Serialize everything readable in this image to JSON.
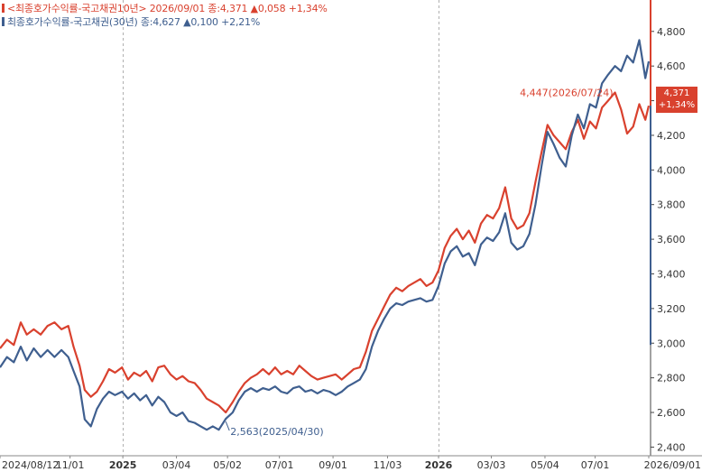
{
  "legend": {
    "series1": "<최종호가수익률-국고채권10년> 2026/09/01 종:4,371  ▲0,058  +1,34%",
    "series2": "최종호가수익률-국고채권(30년) 종:4,627  ▲0,100  +2,21%"
  },
  "badge": {
    "value": "4,371",
    "change": "+1,34%"
  },
  "colors": {
    "series1": "#d9412e",
    "series2": "#3f5f8f",
    "grid": "#b0b0b0"
  },
  "chart_data": {
    "type": "line",
    "ylim": [
      2.35,
      4.95
    ],
    "grid": "dashed vertical lines at year boundaries",
    "y_ticks": [
      {
        "value": 2.4,
        "label": "2,400"
      },
      {
        "value": 2.6,
        "label": "2,600"
      },
      {
        "value": 2.8,
        "label": "2,800"
      },
      {
        "value": 3.0,
        "label": "3,000"
      },
      {
        "value": 3.2,
        "label": "3,200"
      },
      {
        "value": 3.4,
        "label": "3,400"
      },
      {
        "value": 3.6,
        "label": "3,600"
      },
      {
        "value": 3.8,
        "label": "3,800"
      },
      {
        "value": 4.0,
        "label": "4,000"
      },
      {
        "value": 4.2,
        "label": "4,200"
      },
      {
        "value": 4.4,
        "label": "4,400"
      },
      {
        "value": 4.6,
        "label": "4,600"
      },
      {
        "value": 4.8,
        "label": "4,800"
      }
    ],
    "x_ticks": [
      {
        "date": "2024-08-12",
        "label": "2024/08/12",
        "bold": false
      },
      {
        "date": "2024-11-01",
        "label": "11/01",
        "bold": false
      },
      {
        "date": "2025-01-01",
        "label": "2025",
        "bold": true
      },
      {
        "date": "2025-03-04",
        "label": "03/04",
        "bold": false
      },
      {
        "date": "2025-05-02",
        "label": "05/02",
        "bold": false
      },
      {
        "date": "2025-07-01",
        "label": "07/01",
        "bold": false
      },
      {
        "date": "2025-09-01",
        "label": "09/01",
        "bold": false
      },
      {
        "date": "2025-11-03",
        "label": "11/03",
        "bold": false
      },
      {
        "date": "2026-01-01",
        "label": "2026",
        "bold": true
      },
      {
        "date": "2026-03-03",
        "label": "03/03",
        "bold": false
      },
      {
        "date": "2026-05-04",
        "label": "05/04",
        "bold": false
      },
      {
        "date": "2026-07-01",
        "label": "07/01",
        "bold": false
      },
      {
        "date": "2026-09-01",
        "label": "2026/09/01",
        "bold": false
      }
    ],
    "year_lines": [
      "2025-01-01",
      "2026-01-01"
    ],
    "series": [
      {
        "name": "최종호가수익률-국고채권10년",
        "color": "#d9412e",
        "points": [
          [
            "2024-08-12",
            2.97
          ],
          [
            "2024-08-20",
            3.02
          ],
          [
            "2024-08-28",
            2.99
          ],
          [
            "2024-09-05",
            3.12
          ],
          [
            "2024-09-12",
            3.05
          ],
          [
            "2024-09-20",
            3.08
          ],
          [
            "2024-09-28",
            3.05
          ],
          [
            "2024-10-06",
            3.1
          ],
          [
            "2024-10-14",
            3.12
          ],
          [
            "2024-10-22",
            3.08
          ],
          [
            "2024-10-30",
            3.1
          ],
          [
            "2024-11-05",
            2.98
          ],
          [
            "2024-11-12",
            2.87
          ],
          [
            "2024-11-18",
            2.73
          ],
          [
            "2024-11-25",
            2.69
          ],
          [
            "2024-12-02",
            2.72
          ],
          [
            "2024-12-09",
            2.78
          ],
          [
            "2024-12-16",
            2.85
          ],
          [
            "2024-12-23",
            2.83
          ],
          [
            "2024-12-31",
            2.86
          ],
          [
            "2025-01-07",
            2.79
          ],
          [
            "2025-01-14",
            2.83
          ],
          [
            "2025-01-21",
            2.81
          ],
          [
            "2025-01-28",
            2.84
          ],
          [
            "2025-02-04",
            2.78
          ],
          [
            "2025-02-11",
            2.86
          ],
          [
            "2025-02-18",
            2.87
          ],
          [
            "2025-02-25",
            2.82
          ],
          [
            "2025-03-04",
            2.79
          ],
          [
            "2025-03-11",
            2.81
          ],
          [
            "2025-03-18",
            2.78
          ],
          [
            "2025-03-25",
            2.77
          ],
          [
            "2025-04-01",
            2.73
          ],
          [
            "2025-04-08",
            2.68
          ],
          [
            "2025-04-15",
            2.66
          ],
          [
            "2025-04-22",
            2.64
          ],
          [
            "2025-04-30",
            2.6
          ],
          [
            "2025-05-08",
            2.66
          ],
          [
            "2025-05-15",
            2.72
          ],
          [
            "2025-05-22",
            2.77
          ],
          [
            "2025-05-29",
            2.8
          ],
          [
            "2025-06-05",
            2.82
          ],
          [
            "2025-06-12",
            2.85
          ],
          [
            "2025-06-19",
            2.82
          ],
          [
            "2025-06-26",
            2.86
          ],
          [
            "2025-07-03",
            2.82
          ],
          [
            "2025-07-10",
            2.84
          ],
          [
            "2025-07-17",
            2.82
          ],
          [
            "2025-07-24",
            2.87
          ],
          [
            "2025-07-31",
            2.84
          ],
          [
            "2025-08-07",
            2.81
          ],
          [
            "2025-08-14",
            2.79
          ],
          [
            "2025-08-21",
            2.8
          ],
          [
            "2025-08-28",
            2.81
          ],
          [
            "2025-09-04",
            2.82
          ],
          [
            "2025-09-11",
            2.79
          ],
          [
            "2025-09-18",
            2.82
          ],
          [
            "2025-09-25",
            2.85
          ],
          [
            "2025-10-02",
            2.86
          ],
          [
            "2025-10-09",
            2.95
          ],
          [
            "2025-10-16",
            3.07
          ],
          [
            "2025-10-23",
            3.14
          ],
          [
            "2025-10-30",
            3.21
          ],
          [
            "2025-11-06",
            3.28
          ],
          [
            "2025-11-13",
            3.32
          ],
          [
            "2025-11-20",
            3.3
          ],
          [
            "2025-11-27",
            3.33
          ],
          [
            "2025-12-04",
            3.35
          ],
          [
            "2025-12-11",
            3.37
          ],
          [
            "2025-12-18",
            3.33
          ],
          [
            "2025-12-25",
            3.35
          ],
          [
            "2026-01-01",
            3.42
          ],
          [
            "2026-01-08",
            3.55
          ],
          [
            "2026-01-15",
            3.62
          ],
          [
            "2026-01-22",
            3.66
          ],
          [
            "2026-01-29",
            3.6
          ],
          [
            "2026-02-05",
            3.65
          ],
          [
            "2026-02-12",
            3.58
          ],
          [
            "2026-02-19",
            3.69
          ],
          [
            "2026-02-26",
            3.74
          ],
          [
            "2026-03-05",
            3.72
          ],
          [
            "2026-03-12",
            3.78
          ],
          [
            "2026-03-19",
            3.9
          ],
          [
            "2026-03-26",
            3.72
          ],
          [
            "2026-04-02",
            3.66
          ],
          [
            "2026-04-09",
            3.68
          ],
          [
            "2026-04-16",
            3.75
          ],
          [
            "2026-04-23",
            3.93
          ],
          [
            "2026-04-30",
            4.1
          ],
          [
            "2026-05-07",
            4.26
          ],
          [
            "2026-05-14",
            4.2
          ],
          [
            "2026-05-21",
            4.16
          ],
          [
            "2026-05-28",
            4.12
          ],
          [
            "2026-06-04",
            4.22
          ],
          [
            "2026-06-11",
            4.29
          ],
          [
            "2026-06-18",
            4.18
          ],
          [
            "2026-06-25",
            4.28
          ],
          [
            "2026-07-02",
            4.24
          ],
          [
            "2026-07-09",
            4.36
          ],
          [
            "2026-07-16",
            4.4
          ],
          [
            "2026-07-24",
            4.447
          ],
          [
            "2026-07-31",
            4.35
          ],
          [
            "2026-08-07",
            4.21
          ],
          [
            "2026-08-14",
            4.25
          ],
          [
            "2026-08-21",
            4.38
          ],
          [
            "2026-08-28",
            4.29
          ],
          [
            "2026-09-01",
            4.371
          ]
        ]
      },
      {
        "name": "최종호가수익률-국고채권(30년)",
        "color": "#3f5f8f",
        "points": [
          [
            "2024-08-12",
            2.86
          ],
          [
            "2024-08-20",
            2.92
          ],
          [
            "2024-08-28",
            2.89
          ],
          [
            "2024-09-05",
            2.98
          ],
          [
            "2024-09-12",
            2.9
          ],
          [
            "2024-09-20",
            2.97
          ],
          [
            "2024-09-28",
            2.92
          ],
          [
            "2024-10-06",
            2.96
          ],
          [
            "2024-10-14",
            2.92
          ],
          [
            "2024-10-22",
            2.96
          ],
          [
            "2024-10-30",
            2.92
          ],
          [
            "2024-11-05",
            2.84
          ],
          [
            "2024-11-12",
            2.75
          ],
          [
            "2024-11-18",
            2.56
          ],
          [
            "2024-11-25",
            2.52
          ],
          [
            "2024-12-02",
            2.62
          ],
          [
            "2024-12-09",
            2.68
          ],
          [
            "2024-12-16",
            2.72
          ],
          [
            "2024-12-23",
            2.7
          ],
          [
            "2024-12-31",
            2.72
          ],
          [
            "2025-01-07",
            2.68
          ],
          [
            "2025-01-14",
            2.71
          ],
          [
            "2025-01-21",
            2.67
          ],
          [
            "2025-01-28",
            2.7
          ],
          [
            "2025-02-04",
            2.64
          ],
          [
            "2025-02-11",
            2.69
          ],
          [
            "2025-02-18",
            2.66
          ],
          [
            "2025-02-25",
            2.6
          ],
          [
            "2025-03-04",
            2.58
          ],
          [
            "2025-03-11",
            2.6
          ],
          [
            "2025-03-18",
            2.55
          ],
          [
            "2025-03-25",
            2.54
          ],
          [
            "2025-04-01",
            2.52
          ],
          [
            "2025-04-08",
            2.5
          ],
          [
            "2025-04-15",
            2.52
          ],
          [
            "2025-04-22",
            2.5
          ],
          [
            "2025-04-30",
            2.563
          ],
          [
            "2025-05-08",
            2.6
          ],
          [
            "2025-05-15",
            2.67
          ],
          [
            "2025-05-22",
            2.72
          ],
          [
            "2025-05-29",
            2.74
          ],
          [
            "2025-06-05",
            2.72
          ],
          [
            "2025-06-12",
            2.74
          ],
          [
            "2025-06-19",
            2.73
          ],
          [
            "2025-06-26",
            2.75
          ],
          [
            "2025-07-03",
            2.72
          ],
          [
            "2025-07-10",
            2.71
          ],
          [
            "2025-07-17",
            2.74
          ],
          [
            "2025-07-24",
            2.75
          ],
          [
            "2025-07-31",
            2.72
          ],
          [
            "2025-08-07",
            2.73
          ],
          [
            "2025-08-14",
            2.71
          ],
          [
            "2025-08-21",
            2.73
          ],
          [
            "2025-08-28",
            2.72
          ],
          [
            "2025-09-04",
            2.7
          ],
          [
            "2025-09-11",
            2.72
          ],
          [
            "2025-09-18",
            2.75
          ],
          [
            "2025-09-25",
            2.77
          ],
          [
            "2025-10-02",
            2.79
          ],
          [
            "2025-10-09",
            2.85
          ],
          [
            "2025-10-16",
            2.98
          ],
          [
            "2025-10-23",
            3.07
          ],
          [
            "2025-10-30",
            3.14
          ],
          [
            "2025-11-06",
            3.2
          ],
          [
            "2025-11-13",
            3.23
          ],
          [
            "2025-11-20",
            3.22
          ],
          [
            "2025-11-27",
            3.24
          ],
          [
            "2025-12-04",
            3.25
          ],
          [
            "2025-12-11",
            3.26
          ],
          [
            "2025-12-18",
            3.24
          ],
          [
            "2025-12-25",
            3.25
          ],
          [
            "2026-01-01",
            3.33
          ],
          [
            "2026-01-08",
            3.46
          ],
          [
            "2026-01-15",
            3.53
          ],
          [
            "2026-01-22",
            3.56
          ],
          [
            "2026-01-29",
            3.5
          ],
          [
            "2026-02-05",
            3.52
          ],
          [
            "2026-02-12",
            3.45
          ],
          [
            "2026-02-19",
            3.57
          ],
          [
            "2026-02-26",
            3.61
          ],
          [
            "2026-03-05",
            3.59
          ],
          [
            "2026-03-12",
            3.64
          ],
          [
            "2026-03-19",
            3.75
          ],
          [
            "2026-03-26",
            3.58
          ],
          [
            "2026-04-02",
            3.54
          ],
          [
            "2026-04-09",
            3.56
          ],
          [
            "2026-04-16",
            3.63
          ],
          [
            "2026-04-23",
            3.8
          ],
          [
            "2026-04-30",
            4.02
          ],
          [
            "2026-05-07",
            4.22
          ],
          [
            "2026-05-14",
            4.15
          ],
          [
            "2026-05-21",
            4.07
          ],
          [
            "2026-05-28",
            4.02
          ],
          [
            "2026-06-04",
            4.2
          ],
          [
            "2026-06-11",
            4.32
          ],
          [
            "2026-06-18",
            4.24
          ],
          [
            "2026-06-25",
            4.38
          ],
          [
            "2026-07-02",
            4.36
          ],
          [
            "2026-07-09",
            4.5
          ],
          [
            "2026-07-16",
            4.55
          ],
          [
            "2026-07-24",
            4.6
          ],
          [
            "2026-07-31",
            4.57
          ],
          [
            "2026-08-07",
            4.66
          ],
          [
            "2026-08-14",
            4.62
          ],
          [
            "2026-08-21",
            4.75
          ],
          [
            "2026-08-28",
            4.53
          ],
          [
            "2026-09-01",
            4.627
          ]
        ]
      }
    ],
    "annotations": [
      {
        "series": 0,
        "date": "2026-07-24",
        "value": 4.447,
        "label": "4,447(2026/07/24)",
        "anchor": "end"
      },
      {
        "series": 1,
        "date": "2025-04-30",
        "value": 2.563,
        "label": "2,563(2025/04/30)",
        "anchor": "start"
      }
    ]
  }
}
